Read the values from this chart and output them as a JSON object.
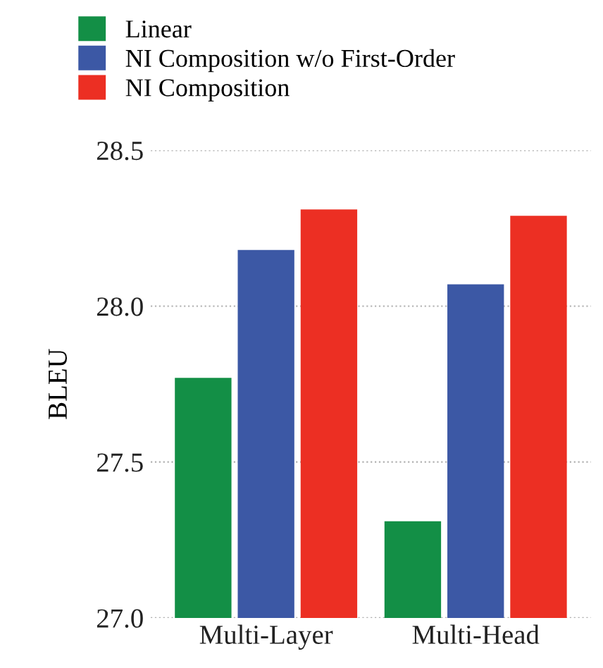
{
  "chart_data": {
    "type": "bar",
    "ylabel": "BLEU",
    "categories": [
      "Multi-Layer",
      "Multi-Head"
    ],
    "series": [
      {
        "name": "Linear",
        "color": "#138f46",
        "values": [
          27.77,
          27.31
        ]
      },
      {
        "name": "NI Composition w/o First-Order",
        "color": "#3c58a5",
        "values": [
          28.18,
          28.07
        ]
      },
      {
        "name": "NI Composition",
        "color": "#ec2f23",
        "values": [
          28.31,
          28.29
        ]
      }
    ],
    "ylim": [
      27.0,
      28.5
    ],
    "yticks": [
      {
        "value": 27.0,
        "label": "27.0"
      },
      {
        "value": 27.5,
        "label": "27.5"
      },
      {
        "value": 28.0,
        "label": "28.0"
      },
      {
        "value": 28.5,
        "label": "28.5"
      }
    ],
    "grid": "y",
    "legend": "top"
  }
}
